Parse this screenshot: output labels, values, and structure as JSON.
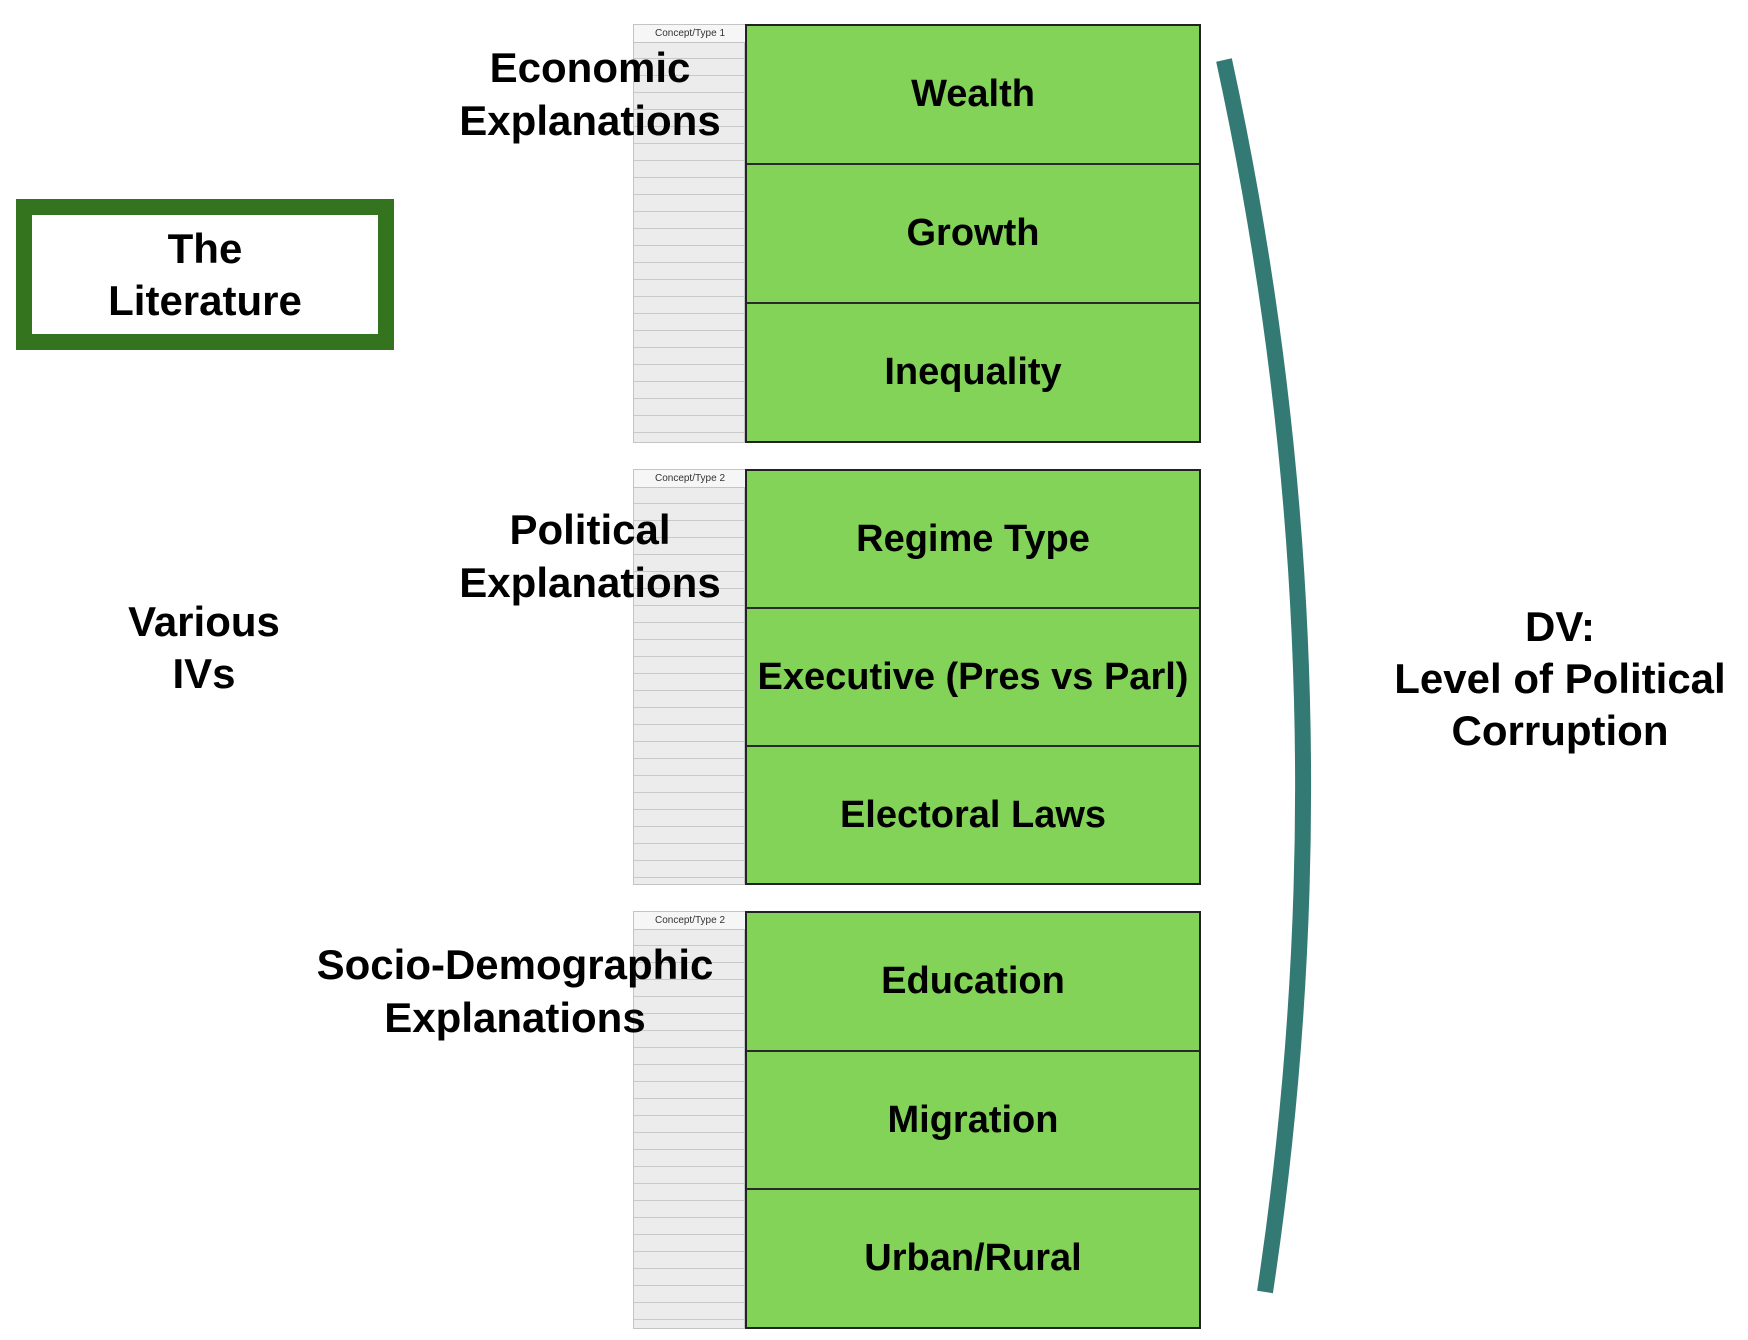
{
  "literature_box": {
    "text": "The\nLiterature"
  },
  "various_ivs": "Various\nIVs",
  "dv_label": "DV:\nLevel of Political\nCorruption",
  "colors": {
    "box_border": "#35741f",
    "cell_fill": "#82d357",
    "arc": "#347a74"
  },
  "groups": [
    {
      "category": "Economic\nExplanations",
      "grid_header": "Concept/Type 1",
      "items": [
        "Wealth",
        "Growth",
        "Inequality"
      ]
    },
    {
      "category": "Political\nExplanations",
      "grid_header": "Concept/Type 2",
      "items": [
        "Regime Type",
        "Executive (Pres vs Parl)",
        "Electoral Laws"
      ]
    },
    {
      "category": "Socio-Demographic\nExplanations",
      "grid_header": "Concept/Type 2",
      "items": [
        "Education",
        "Migration",
        "Urban/Rural"
      ]
    }
  ]
}
